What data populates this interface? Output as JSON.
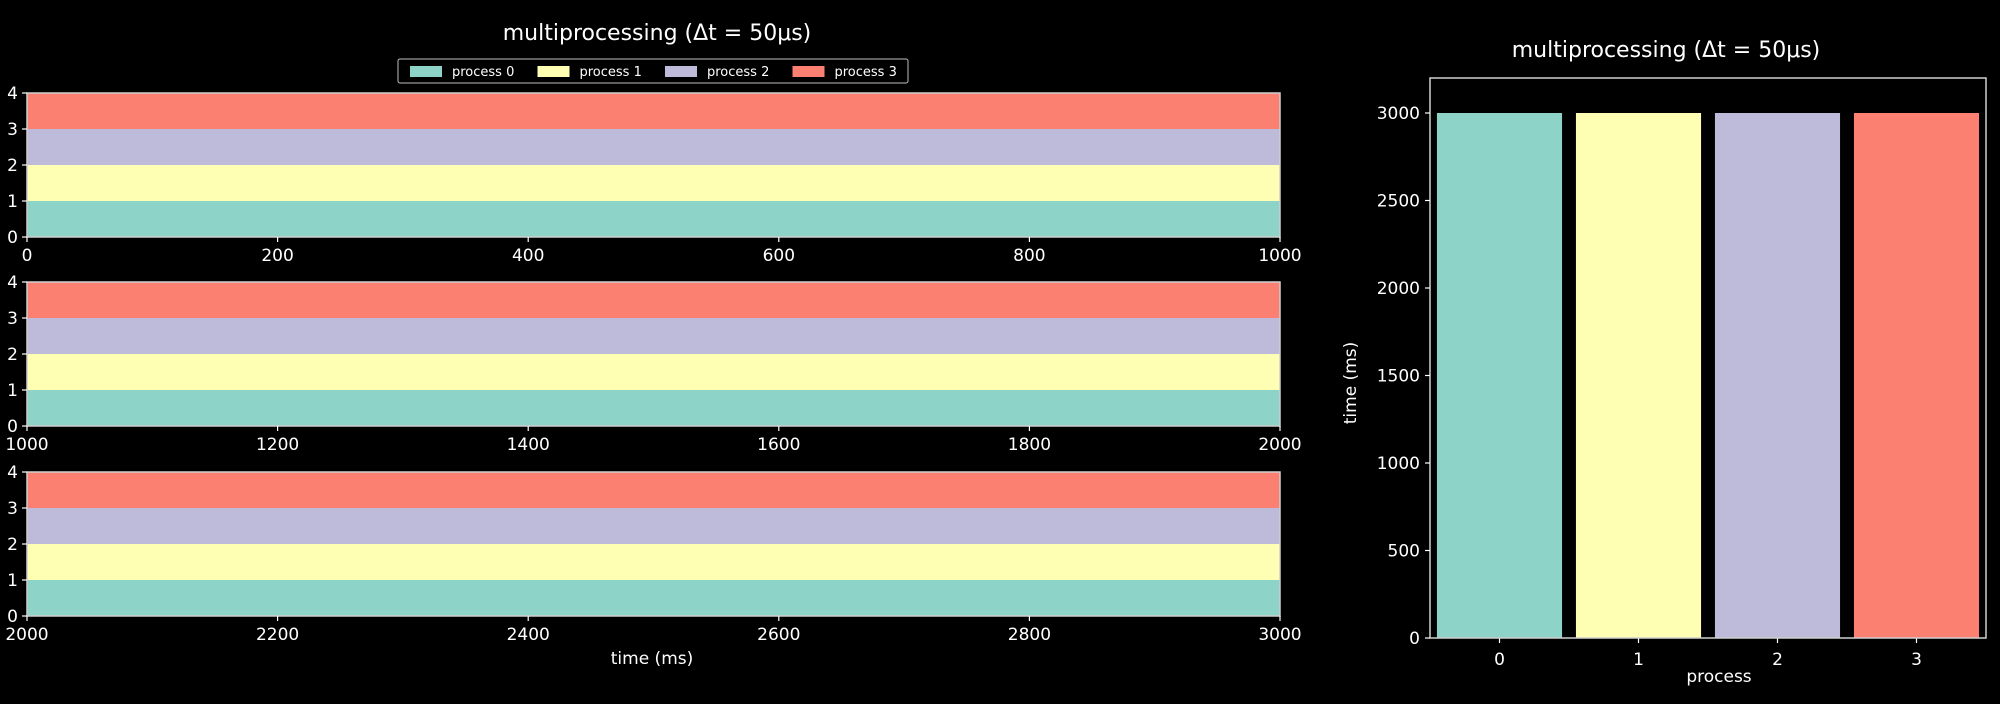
{
  "colors": {
    "process 0": "#8dd3c7",
    "process 1": "#ffffb3",
    "process 2": "#bebada",
    "process 3": "#fb8072",
    "background": "#000000",
    "text": "#ffffff"
  },
  "chart_data": [
    {
      "type": "timeline",
      "title": "multiprocessing (Δt = 50μs)",
      "legend": {
        "placement": "top-center",
        "entries": [
          "process 0",
          "process 1",
          "process 2",
          "process 3"
        ]
      },
      "xlabel": "time (ms)",
      "ylabel": "",
      "ylim": [
        0,
        4
      ],
      "yticks": [
        0,
        1,
        2,
        3,
        4
      ],
      "series": [
        {
          "name": "process 0",
          "lane": [
            0,
            1
          ],
          "intervals": [
            [
              0,
              3000
            ]
          ]
        },
        {
          "name": "process 1",
          "lane": [
            1,
            2
          ],
          "intervals": [
            [
              0,
              3000
            ]
          ]
        },
        {
          "name": "process 2",
          "lane": [
            2,
            3
          ],
          "intervals": [
            [
              0,
              3000
            ]
          ]
        },
        {
          "name": "process 3",
          "lane": [
            3,
            4
          ],
          "intervals": [
            [
              0,
              3000
            ]
          ]
        }
      ],
      "panels": [
        {
          "xlim": [
            0,
            1000
          ],
          "xticks": [
            0,
            200,
            400,
            600,
            800,
            1000
          ]
        },
        {
          "xlim": [
            1000,
            2000
          ],
          "xticks": [
            1000,
            1200,
            1400,
            1600,
            1800,
            2000
          ]
        },
        {
          "xlim": [
            2000,
            3000
          ],
          "xticks": [
            2000,
            2200,
            2400,
            2600,
            2800,
            3000
          ]
        }
      ]
    },
    {
      "type": "bar",
      "title": "multiprocessing (Δt = 50μs)",
      "categories": [
        "0",
        "1",
        "2",
        "3"
      ],
      "values": [
        3000,
        3000,
        3000,
        3000
      ],
      "bar_colors": [
        "process 0",
        "process 1",
        "process 2",
        "process 3"
      ],
      "xlabel": "process",
      "ylabel": "time (ms)",
      "ylim": [
        0,
        3200
      ],
      "yticks": [
        0,
        500,
        1000,
        1500,
        2000,
        2500,
        3000
      ]
    }
  ]
}
